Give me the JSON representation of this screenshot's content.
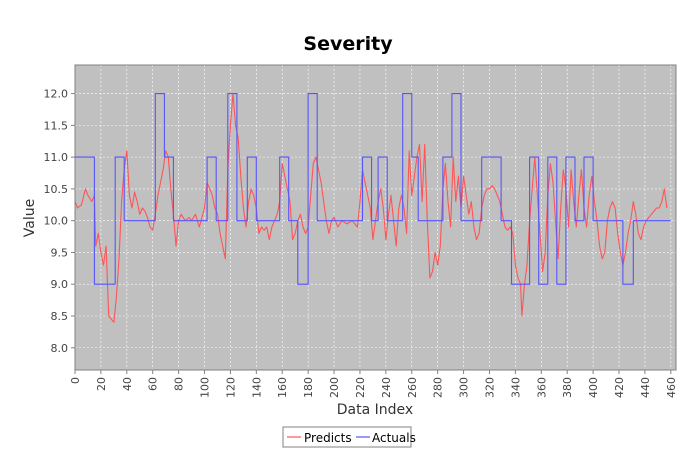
{
  "chart_data": {
    "type": "line",
    "title": "Severity",
    "xlabel": "Data Index",
    "ylabel": "Value",
    "xlim": [
      0,
      464
    ],
    "ylim": [
      7.65,
      12.45
    ],
    "x_ticks": [
      0,
      20,
      40,
      60,
      80,
      100,
      120,
      140,
      160,
      180,
      200,
      220,
      240,
      260,
      280,
      300,
      320,
      340,
      360,
      380,
      400,
      420,
      440,
      460
    ],
    "y_ticks": [
      8.0,
      8.5,
      9.0,
      9.5,
      10.0,
      10.5,
      11.0,
      11.5,
      12.0
    ],
    "x_tick_labels": [
      "0",
      "20",
      "40",
      "60",
      "80",
      "100",
      "120",
      "140",
      "160",
      "180",
      "200",
      "220",
      "240",
      "260",
      "280",
      "300",
      "320",
      "340",
      "360",
      "380",
      "400",
      "420",
      "440",
      "460"
    ],
    "y_tick_labels": [
      "8.0",
      "8.5",
      "9.0",
      "9.5",
      "10.0",
      "10.5",
      "11.0",
      "11.5",
      "12.0"
    ],
    "grid": true,
    "legend_position": "bottom-center",
    "series": [
      {
        "name": "Predicts",
        "color": "#ff5555",
        "points": [
          [
            0,
            10.3
          ],
          [
            2,
            10.2
          ],
          [
            5,
            10.25
          ],
          [
            8,
            10.5
          ],
          [
            10,
            10.4
          ],
          [
            13,
            10.3
          ],
          [
            15,
            10.4
          ],
          [
            16,
            9.6
          ],
          [
            18,
            9.8
          ],
          [
            20,
            9.5
          ],
          [
            22,
            9.3
          ],
          [
            24,
            9.6
          ],
          [
            26,
            8.5
          ],
          [
            28,
            8.45
          ],
          [
            30,
            8.4
          ],
          [
            32,
            8.8
          ],
          [
            34,
            9.4
          ],
          [
            36,
            10.3
          ],
          [
            38,
            10.8
          ],
          [
            40,
            11.1
          ],
          [
            42,
            10.4
          ],
          [
            44,
            10.2
          ],
          [
            46,
            10.45
          ],
          [
            48,
            10.3
          ],
          [
            50,
            10.1
          ],
          [
            52,
            10.2
          ],
          [
            54,
            10.15
          ],
          [
            56,
            10.05
          ],
          [
            58,
            9.9
          ],
          [
            60,
            9.85
          ],
          [
            62,
            10.1
          ],
          [
            64,
            10.4
          ],
          [
            66,
            10.6
          ],
          [
            68,
            10.8
          ],
          [
            70,
            11.1
          ],
          [
            72,
            11.0
          ],
          [
            74,
            10.5
          ],
          [
            76,
            10.1
          ],
          [
            78,
            9.6
          ],
          [
            80,
            10.0
          ],
          [
            82,
            10.1
          ],
          [
            85,
            10.0
          ],
          [
            88,
            10.05
          ],
          [
            90,
            10.0
          ],
          [
            93,
            10.1
          ],
          [
            96,
            9.9
          ],
          [
            100,
            10.2
          ],
          [
            102,
            10.6
          ],
          [
            104,
            10.5
          ],
          [
            106,
            10.4
          ],
          [
            108,
            10.2
          ],
          [
            110,
            10.1
          ],
          [
            112,
            9.8
          ],
          [
            114,
            9.6
          ],
          [
            116,
            9.4
          ],
          [
            118,
            10.8
          ],
          [
            120,
            11.5
          ],
          [
            122,
            12.0
          ],
          [
            124,
            11.5
          ],
          [
            126,
            11.3
          ],
          [
            128,
            10.7
          ],
          [
            130,
            10.2
          ],
          [
            132,
            9.9
          ],
          [
            134,
            10.3
          ],
          [
            136,
            10.5
          ],
          [
            138,
            10.4
          ],
          [
            140,
            10.2
          ],
          [
            142,
            9.8
          ],
          [
            144,
            9.9
          ],
          [
            146,
            9.85
          ],
          [
            148,
            9.9
          ],
          [
            150,
            9.7
          ],
          [
            152,
            9.9
          ],
          [
            154,
            10.0
          ],
          [
            156,
            10.1
          ],
          [
            158,
            10.3
          ],
          [
            160,
            10.9
          ],
          [
            162,
            10.7
          ],
          [
            164,
            10.5
          ],
          [
            166,
            10.3
          ],
          [
            168,
            9.7
          ],
          [
            170,
            9.8
          ],
          [
            172,
            10.0
          ],
          [
            174,
            10.1
          ],
          [
            176,
            9.9
          ],
          [
            178,
            9.8
          ],
          [
            180,
            9.9
          ],
          [
            182,
            10.4
          ],
          [
            184,
            10.9
          ],
          [
            186,
            11.0
          ],
          [
            188,
            10.8
          ],
          [
            190,
            10.6
          ],
          [
            192,
            10.3
          ],
          [
            194,
            10.0
          ],
          [
            196,
            9.8
          ],
          [
            198,
            10.0
          ],
          [
            200,
            10.05
          ],
          [
            203,
            9.9
          ],
          [
            206,
            10.0
          ],
          [
            210,
            9.95
          ],
          [
            214,
            10.0
          ],
          [
            218,
            9.9
          ],
          [
            220,
            10.3
          ],
          [
            222,
            10.8
          ],
          [
            224,
            10.6
          ],
          [
            226,
            10.4
          ],
          [
            228,
            10.2
          ],
          [
            230,
            9.7
          ],
          [
            232,
            10.0
          ],
          [
            234,
            10.3
          ],
          [
            236,
            10.5
          ],
          [
            238,
            10.2
          ],
          [
            240,
            9.7
          ],
          [
            242,
            10.1
          ],
          [
            244,
            10.4
          ],
          [
            246,
            10.0
          ],
          [
            248,
            9.6
          ],
          [
            250,
            10.2
          ],
          [
            252,
            10.4
          ],
          [
            254,
            10.2
          ],
          [
            256,
            9.8
          ],
          [
            258,
            11.1
          ],
          [
            260,
            10.4
          ],
          [
            262,
            10.7
          ],
          [
            264,
            11.0
          ],
          [
            266,
            11.2
          ],
          [
            268,
            10.3
          ],
          [
            270,
            11.2
          ],
          [
            272,
            10.0
          ],
          [
            274,
            9.1
          ],
          [
            276,
            9.2
          ],
          [
            278,
            9.5
          ],
          [
            280,
            9.3
          ],
          [
            282,
            9.6
          ],
          [
            284,
            10.5
          ],
          [
            286,
            10.9
          ],
          [
            288,
            10.3
          ],
          [
            290,
            9.9
          ],
          [
            292,
            11.0
          ],
          [
            294,
            10.3
          ],
          [
            296,
            10.7
          ],
          [
            298,
            10.2
          ],
          [
            300,
            10.7
          ],
          [
            302,
            10.4
          ],
          [
            304,
            10.1
          ],
          [
            306,
            10.3
          ],
          [
            308,
            9.9
          ],
          [
            310,
            9.7
          ],
          [
            312,
            9.8
          ],
          [
            314,
            10.2
          ],
          [
            316,
            10.4
          ],
          [
            318,
            10.5
          ],
          [
            320,
            10.5
          ],
          [
            322,
            10.55
          ],
          [
            324,
            10.5
          ],
          [
            326,
            10.4
          ],
          [
            328,
            10.3
          ],
          [
            330,
            10.1
          ],
          [
            332,
            9.9
          ],
          [
            334,
            9.85
          ],
          [
            336,
            9.9
          ],
          [
            338,
            9.8
          ],
          [
            340,
            9.3
          ],
          [
            342,
            9.1
          ],
          [
            344,
            9.0
          ],
          [
            345,
            8.5
          ],
          [
            347,
            9.0
          ],
          [
            349,
            9.3
          ],
          [
            351,
            10.0
          ],
          [
            353,
            10.5
          ],
          [
            355,
            11.0
          ],
          [
            357,
            10.4
          ],
          [
            359,
            9.8
          ],
          [
            361,
            9.2
          ],
          [
            363,
            9.5
          ],
          [
            365,
            10.4
          ],
          [
            367,
            10.9
          ],
          [
            369,
            10.6
          ],
          [
            371,
            10.0
          ],
          [
            373,
            9.4
          ],
          [
            375,
            10.2
          ],
          [
            377,
            10.8
          ],
          [
            379,
            10.5
          ],
          [
            381,
            9.9
          ],
          [
            383,
            10.8
          ],
          [
            385,
            10.3
          ],
          [
            387,
            9.9
          ],
          [
            389,
            10.4
          ],
          [
            391,
            10.8
          ],
          [
            393,
            10.2
          ],
          [
            395,
            9.9
          ],
          [
            397,
            10.4
          ],
          [
            399,
            10.7
          ],
          [
            401,
            10.3
          ],
          [
            403,
            10.0
          ],
          [
            405,
            9.6
          ],
          [
            407,
            9.4
          ],
          [
            409,
            9.5
          ],
          [
            411,
            10.0
          ],
          [
            413,
            10.2
          ],
          [
            415,
            10.3
          ],
          [
            417,
            10.2
          ],
          [
            419,
            9.8
          ],
          [
            421,
            9.5
          ],
          [
            423,
            9.3
          ],
          [
            425,
            9.5
          ],
          [
            427,
            9.8
          ],
          [
            429,
            10.0
          ],
          [
            431,
            10.3
          ],
          [
            433,
            10.1
          ],
          [
            435,
            9.8
          ],
          [
            437,
            9.7
          ],
          [
            439,
            9.9
          ],
          [
            441,
            10.0
          ],
          [
            443,
            10.05
          ],
          [
            445,
            10.1
          ],
          [
            447,
            10.15
          ],
          [
            449,
            10.2
          ],
          [
            451,
            10.2
          ],
          [
            453,
            10.3
          ],
          [
            455,
            10.5
          ],
          [
            457,
            10.2
          ]
        ]
      },
      {
        "name": "Actuals",
        "color": "#5555ff",
        "points": [
          [
            0,
            11
          ],
          [
            15,
            11
          ],
          [
            15,
            9
          ],
          [
            31,
            9
          ],
          [
            31,
            11
          ],
          [
            38,
            11
          ],
          [
            38,
            10
          ],
          [
            62,
            10
          ],
          [
            62,
            12
          ],
          [
            69,
            12
          ],
          [
            69,
            11
          ],
          [
            76,
            11
          ],
          [
            76,
            10
          ],
          [
            102,
            10
          ],
          [
            102,
            11
          ],
          [
            109,
            11
          ],
          [
            109,
            10
          ],
          [
            118,
            10
          ],
          [
            118,
            12
          ],
          [
            125,
            12
          ],
          [
            125,
            10
          ],
          [
            133,
            10
          ],
          [
            133,
            11
          ],
          [
            140,
            11
          ],
          [
            140,
            10
          ],
          [
            158,
            10
          ],
          [
            158,
            11
          ],
          [
            165,
            11
          ],
          [
            165,
            10
          ],
          [
            172,
            10
          ],
          [
            172,
            9
          ],
          [
            180,
            9
          ],
          [
            180,
            12
          ],
          [
            187,
            12
          ],
          [
            187,
            10
          ],
          [
            222,
            10
          ],
          [
            222,
            11
          ],
          [
            229,
            11
          ],
          [
            229,
            10
          ],
          [
            234,
            10
          ],
          [
            234,
            11
          ],
          [
            241,
            11
          ],
          [
            241,
            10
          ],
          [
            253,
            10
          ],
          [
            253,
            12
          ],
          [
            260,
            12
          ],
          [
            260,
            11
          ],
          [
            265,
            11
          ],
          [
            265,
            10
          ],
          [
            284,
            10
          ],
          [
            284,
            11
          ],
          [
            291,
            11
          ],
          [
            291,
            12
          ],
          [
            298,
            12
          ],
          [
            298,
            10
          ],
          [
            314,
            10
          ],
          [
            314,
            11
          ],
          [
            329,
            11
          ],
          [
            329,
            10
          ],
          [
            337,
            10
          ],
          [
            337,
            9
          ],
          [
            351,
            9
          ],
          [
            351,
            11
          ],
          [
            358,
            11
          ],
          [
            358,
            9
          ],
          [
            365,
            9
          ],
          [
            365,
            11
          ],
          [
            372,
            11
          ],
          [
            372,
            9
          ],
          [
            379,
            9
          ],
          [
            379,
            11
          ],
          [
            386,
            11
          ],
          [
            386,
            10
          ],
          [
            393,
            10
          ],
          [
            393,
            11
          ],
          [
            400,
            11
          ],
          [
            400,
            10
          ],
          [
            423,
            10
          ],
          [
            423,
            9
          ],
          [
            431,
            9
          ],
          [
            431,
            10
          ],
          [
            460,
            10
          ]
        ]
      }
    ]
  }
}
